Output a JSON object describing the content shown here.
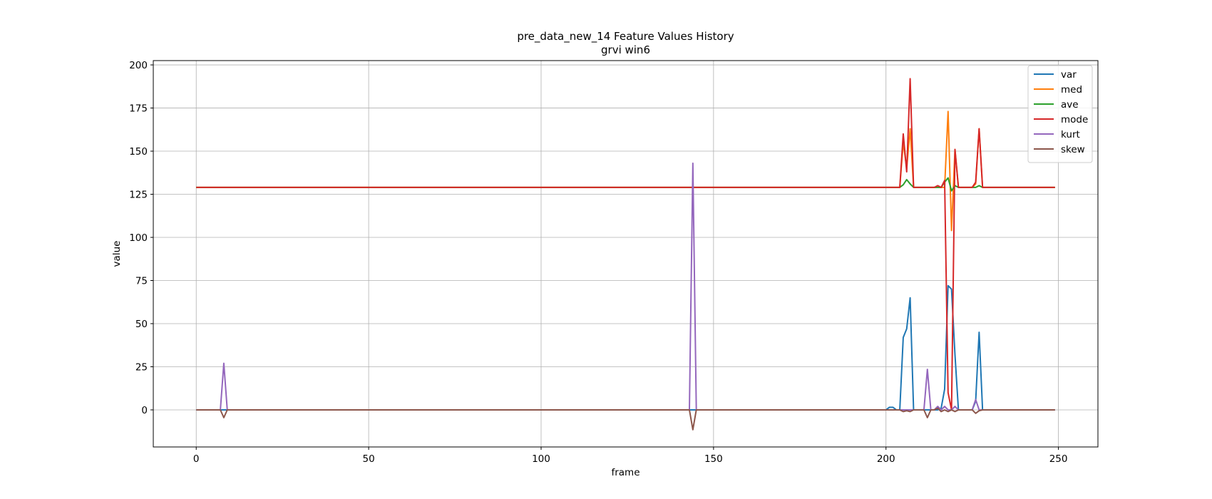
{
  "chart_data": {
    "type": "line",
    "title": "pre_data_new_14 Feature Values History",
    "subtitle": "grvi win6",
    "xlabel": "frame",
    "ylabel": "value",
    "xlim": [
      -12.45,
      261.45
    ],
    "ylim": [
      -21.5,
      202.5
    ],
    "xticks": [
      0,
      50,
      100,
      150,
      200,
      250
    ],
    "yticks": [
      0,
      25,
      50,
      75,
      100,
      125,
      150,
      175,
      200
    ],
    "grid": true,
    "legend_position": "top-right",
    "n_frames": 250,
    "series": [
      {
        "name": "var",
        "color": "#1f77b4",
        "baseline": 0,
        "points": [
          [
            200,
            0
          ],
          [
            201,
            1.5
          ],
          [
            202,
            1.5
          ],
          [
            203,
            0
          ],
          [
            204,
            0
          ],
          [
            205,
            42
          ],
          [
            206,
            47
          ],
          [
            207,
            65
          ],
          [
            208,
            0
          ],
          [
            215,
            0
          ],
          [
            216,
            1
          ],
          [
            217,
            12
          ],
          [
            218,
            72
          ],
          [
            219,
            70
          ],
          [
            220,
            32
          ],
          [
            221,
            0
          ],
          [
            225,
            0
          ],
          [
            226,
            5
          ],
          [
            227,
            45
          ],
          [
            228,
            0
          ]
        ]
      },
      {
        "name": "med",
        "color": "#ff7f0e",
        "baseline": 129,
        "points": [
          [
            204,
            129
          ],
          [
            205,
            155
          ],
          [
            206,
            140
          ],
          [
            207,
            163
          ],
          [
            208,
            129
          ],
          [
            217,
            129
          ],
          [
            218,
            173
          ],
          [
            219,
            104
          ],
          [
            220,
            151
          ],
          [
            221,
            129
          ],
          [
            225,
            129
          ],
          [
            226,
            131
          ],
          [
            227,
            163
          ],
          [
            228,
            129
          ]
        ]
      },
      {
        "name": "ave",
        "color": "#2ca02c",
        "baseline": 129,
        "points": [
          [
            204,
            129
          ],
          [
            205,
            130.5
          ],
          [
            206,
            133.5
          ],
          [
            207,
            131
          ],
          [
            208,
            129
          ],
          [
            216,
            129
          ],
          [
            217,
            132
          ],
          [
            218,
            134.5
          ],
          [
            219,
            127
          ],
          [
            220,
            130
          ],
          [
            221,
            129
          ],
          [
            226,
            129
          ],
          [
            227,
            130
          ],
          [
            228,
            129
          ]
        ]
      },
      {
        "name": "mode",
        "color": "#d62728",
        "baseline": 129,
        "points": [
          [
            204,
            129
          ],
          [
            205,
            160
          ],
          [
            206,
            138
          ],
          [
            207,
            192
          ],
          [
            208,
            129
          ],
          [
            214,
            129
          ],
          [
            215,
            130
          ],
          [
            216,
            129
          ],
          [
            217,
            133
          ],
          [
            218,
            10
          ],
          [
            219,
            0
          ],
          [
            220,
            151
          ],
          [
            221,
            129
          ],
          [
            225,
            129
          ],
          [
            226,
            132
          ],
          [
            227,
            163
          ],
          [
            228,
            129
          ]
        ]
      },
      {
        "name": "kurt",
        "color": "#9467bd",
        "baseline": 0,
        "points": [
          [
            7,
            0
          ],
          [
            8,
            27
          ],
          [
            9,
            0
          ],
          [
            143,
            0
          ],
          [
            144,
            143
          ],
          [
            145,
            0
          ],
          [
            211,
            0
          ],
          [
            212,
            23.5
          ],
          [
            213,
            0
          ],
          [
            214,
            0
          ],
          [
            215,
            2
          ],
          [
            216,
            0
          ],
          [
            217,
            2
          ],
          [
            218,
            0
          ],
          [
            219,
            0
          ],
          [
            220,
            2
          ],
          [
            221,
            0
          ],
          [
            225,
            0
          ],
          [
            226,
            6
          ],
          [
            227,
            0
          ]
        ]
      },
      {
        "name": "skew",
        "color": "#8c564b",
        "baseline": 0,
        "points": [
          [
            7,
            0
          ],
          [
            8,
            -4.5
          ],
          [
            9,
            0
          ],
          [
            143,
            0
          ],
          [
            144,
            -11.5
          ],
          [
            145,
            0
          ],
          [
            204,
            0
          ],
          [
            205,
            -1
          ],
          [
            206,
            -0.5
          ],
          [
            207,
            -1
          ],
          [
            208,
            0
          ],
          [
            211,
            0
          ],
          [
            212,
            -4.5
          ],
          [
            213,
            0
          ],
          [
            214,
            0
          ],
          [
            215,
            1
          ],
          [
            216,
            -1
          ],
          [
            217,
            0
          ],
          [
            218,
            -1
          ],
          [
            219,
            0
          ],
          [
            220,
            -1
          ],
          [
            221,
            0
          ],
          [
            225,
            0
          ],
          [
            226,
            -2
          ],
          [
            227,
            -0.5
          ],
          [
            228,
            0
          ]
        ]
      }
    ]
  }
}
